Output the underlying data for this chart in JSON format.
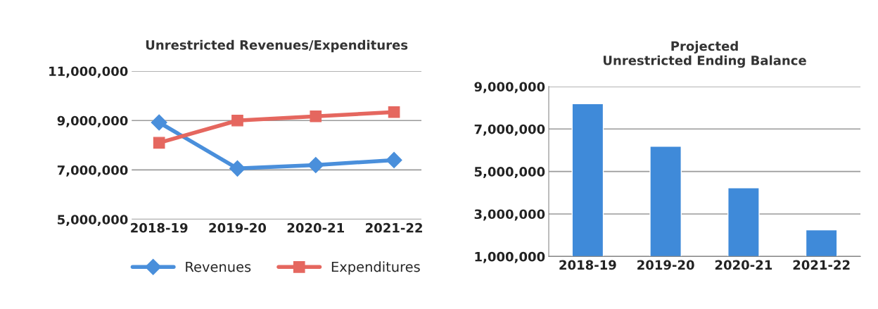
{
  "chart_data": [
    {
      "type": "line",
      "title": "Unrestricted Revenues/Expenditures",
      "categories": [
        "2018-19",
        "2019-20",
        "2020-21",
        "2021-22"
      ],
      "series": [
        {
          "name": "Revenues",
          "color": "#4a8fdb",
          "marker": "diamond",
          "values": [
            8920000,
            7060000,
            7200000,
            7400000
          ]
        },
        {
          "name": "Expenditures",
          "color": "#e5675f",
          "marker": "square",
          "values": [
            8100000,
            9000000,
            9170000,
            9340000
          ]
        }
      ],
      "ylim": [
        5000000,
        11000000
      ],
      "yticks": [
        {
          "value": 5000000,
          "label": "5,000,000"
        },
        {
          "value": 7000000,
          "label": "7,000,000"
        },
        {
          "value": 9000000,
          "label": "9,000,000"
        },
        {
          "value": 11000000,
          "label": "11,000,000"
        }
      ],
      "grid": "y",
      "legend": "bottom"
    },
    {
      "type": "bar",
      "title": "Projected\nUnrestricted Ending Balance",
      "categories": [
        "2018-19",
        "2019-20",
        "2020-21",
        "2021-22"
      ],
      "values": [
        8190000,
        6190000,
        4230000,
        2250000
      ],
      "color": "#3f8ad9",
      "ylim": [
        1000000,
        9000000
      ],
      "yticks": [
        {
          "value": 1000000,
          "label": "1,000,000"
        },
        {
          "value": 3000000,
          "label": "3,000,000"
        },
        {
          "value": 5000000,
          "label": "5,000,000"
        },
        {
          "value": 7000000,
          "label": "7,000,000"
        },
        {
          "value": 9000000,
          "label": "9,000,000"
        }
      ],
      "grid": "y"
    }
  ]
}
